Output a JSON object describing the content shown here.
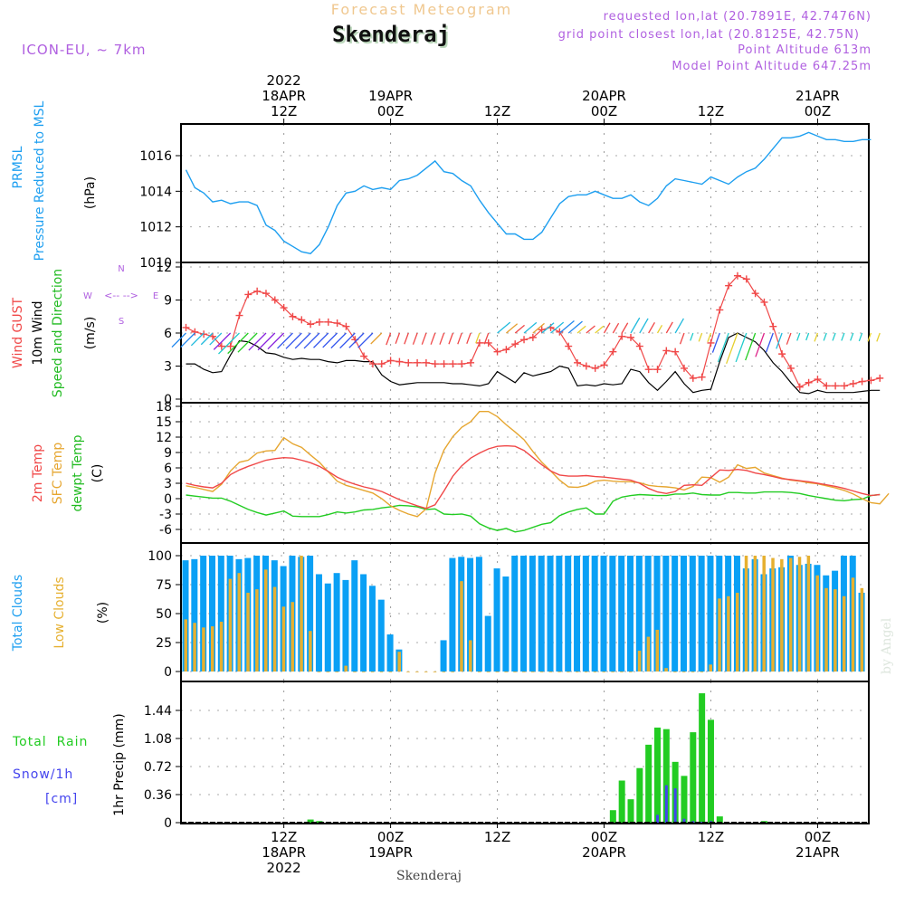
{
  "header": {
    "title": "Forecast Meteogram",
    "location": "Skenderaj",
    "model": "ICON-EU, ~ 7km",
    "requested": "requested lon,lat (20.7891E, 42.7476N)",
    "gridpoint": "grid point closest lon,lat (20.8125E, 42.75N)",
    "point_altitude": "Point Altitude 613m",
    "model_altitude": "Model Point Altitude 647.25m",
    "footer_location": "Skenderaj",
    "credit": "by Angel"
  },
  "colors": {
    "pressure": "#1e9ff0",
    "gust": "#f04848",
    "wind": "#000000",
    "temp2m": "#f04848",
    "sfc": "#e6a630",
    "dewpt": "#22cc22",
    "total_clouds": "#0aa0f5",
    "low_clouds": "#e6b030",
    "rain": "#22cc22",
    "snow": "#4444ee",
    "label_purple": "#b060e0"
  },
  "time_axis": {
    "top_labels": [
      {
        "h": 11,
        "lines": [
          "2022",
          "18APR",
          "12Z"
        ]
      },
      {
        "h": 23,
        "lines": [
          "19APR",
          "00Z"
        ]
      },
      {
        "h": 35,
        "lines": [
          "12Z"
        ]
      },
      {
        "h": 47,
        "lines": [
          "20APR",
          "00Z"
        ]
      },
      {
        "h": 59,
        "lines": [
          "12Z"
        ]
      },
      {
        "h": 71,
        "lines": [
          "21APR",
          "00Z"
        ]
      }
    ],
    "bottom_labels": [
      {
        "h": 11,
        "lines": [
          "12Z",
          "18APR",
          "2022"
        ]
      },
      {
        "h": 23,
        "lines": [
          "00Z",
          "19APR"
        ]
      },
      {
        "h": 35,
        "lines": [
          "12Z"
        ]
      },
      {
        "h": 47,
        "lines": [
          "00Z",
          "20APR"
        ]
      },
      {
        "h": 59,
        "lines": [
          "12Z"
        ]
      },
      {
        "h": 71,
        "lines": [
          "00Z",
          "21APR"
        ]
      }
    ]
  },
  "chart_data": [
    {
      "type": "line",
      "title": "PRMSL Pressure Reduced to MSL",
      "ylabel": "(hPa)",
      "ylim": [
        1010,
        1018
      ],
      "yticks": [
        1010,
        1012,
        1014,
        1016
      ],
      "ytick_labels": [
        "1010",
        "1012",
        "1014",
        "1016"
      ],
      "x_start_hour": 0,
      "x_end_hour": 77,
      "series": [
        {
          "name": "PRMSL",
          "values": [
            1015.2,
            1014.2,
            1013.9,
            1013.4,
            1013.5,
            1013.3,
            1013.4,
            1013.4,
            1013.2,
            1012.1,
            1011.8,
            1011.2,
            1010.9,
            1010.6,
            1010.5,
            1011.0,
            1012.0,
            1013.2,
            1013.9,
            1014.0,
            1014.3,
            1014.1,
            1014.2,
            1014.1,
            1014.6,
            1014.7,
            1014.9,
            1015.3,
            1015.7,
            1015.1,
            1015.0,
            1014.6,
            1014.3,
            1013.5,
            1012.8,
            1012.2,
            1011.6,
            1011.6,
            1011.3,
            1011.3,
            1011.7,
            1012.5,
            1013.3,
            1013.7,
            1013.8,
            1013.8,
            1014.0,
            1013.8,
            1013.6,
            1013.6,
            1013.8,
            1013.4,
            1013.2,
            1013.6,
            1014.3,
            1014.7,
            1014.6,
            1014.5,
            1014.4,
            1014.8,
            1014.6,
            1014.4,
            1014.8,
            1015.1,
            1015.3,
            1015.8,
            1016.4,
            1017.0,
            1017.0,
            1017.1,
            1017.3,
            1017.1,
            1016.9,
            1016.9,
            1016.8,
            1016.8,
            1016.9,
            1016.9
          ]
        }
      ]
    },
    {
      "type": "line",
      "title": "Wind GUST / 10m Wind Speed and Direction",
      "ylabel": "(m/s)",
      "ylim": [
        0,
        12
      ],
      "yticks": [
        0,
        3,
        6,
        9,
        12
      ],
      "ytick_labels": [
        "0",
        "3",
        "6",
        "9",
        "12"
      ],
      "compass": {
        "n": "N",
        "s": "S",
        "w": "W",
        "e": "E"
      },
      "series": [
        {
          "name": "Wind GUST",
          "values": [
            6.5,
            6.1,
            5.9,
            5.7,
            4.8,
            4.8,
            7.6,
            9.5,
            9.8,
            9.6,
            9.0,
            8.3,
            7.5,
            7.2,
            6.8,
            7.0,
            7.0,
            6.9,
            6.6,
            5.4,
            3.9,
            3.2,
            3.2,
            3.5,
            3.4,
            3.3,
            3.3,
            3.3,
            3.2,
            3.2,
            3.2,
            3.2,
            3.3,
            5.1,
            5.1,
            4.3,
            4.5,
            5.0,
            5.4,
            5.6,
            6.3,
            6.5,
            6.1,
            4.8,
            3.3,
            3.0,
            2.8,
            3.1,
            4.3,
            5.7,
            5.6,
            4.8,
            2.7,
            2.7,
            4.4,
            4.3,
            2.8,
            1.9,
            2.0,
            5.1,
            8.1,
            10.3,
            11.2,
            10.9,
            9.6,
            8.8,
            6.6,
            4.1,
            2.8,
            1.1,
            1.5,
            1.8,
            1.2,
            1.2,
            1.2,
            1.4,
            1.6,
            1.7,
            1.9
          ]
        },
        {
          "name": "10m Wind",
          "values": [
            3.2,
            3.2,
            2.7,
            2.4,
            2.5,
            4.0,
            5.3,
            5.2,
            4.8,
            4.2,
            4.1,
            3.8,
            3.6,
            3.7,
            3.6,
            3.6,
            3.4,
            3.3,
            3.5,
            3.5,
            3.4,
            3.4,
            2.2,
            1.6,
            1.3,
            1.4,
            1.5,
            1.5,
            1.5,
            1.5,
            1.4,
            1.4,
            1.3,
            1.2,
            1.4,
            2.5,
            2.0,
            1.5,
            2.4,
            2.1,
            2.3,
            2.5,
            3.0,
            2.8,
            1.2,
            1.3,
            1.2,
            1.4,
            1.3,
            1.4,
            2.7,
            2.5,
            1.5,
            0.8,
            1.6,
            2.5,
            1.4,
            0.6,
            0.8,
            0.9,
            3.4,
            5.6,
            6.0,
            5.6,
            5.2,
            4.4,
            3.3,
            2.5,
            1.5,
            0.6,
            0.5,
            0.8,
            0.6,
            0.6,
            0.6,
            0.6,
            0.7,
            0.8,
            0.8
          ]
        },
        {
          "name": "Wind Direction Arrows",
          "note": "colored arrows at ~6 m/s level; SW/S flow 18APR, NE/N weak 19APR, W-E varying 20APR, E/NE 21APR"
        }
      ]
    },
    {
      "type": "line",
      "title": "2m Temp / SFC Temp / dewpt Temp",
      "ylabel": "(C)",
      "ylim": [
        -9,
        18
      ],
      "yticks": [
        -6,
        -3,
        0,
        3,
        6,
        9,
        12,
        15,
        18
      ],
      "ytick_labels": [
        "-6",
        "-3",
        "0",
        "3",
        "6",
        "9",
        "12",
        "15",
        "18"
      ],
      "series": [
        {
          "name": "2m Temp",
          "values": [
            3.0,
            2.6,
            2.3,
            2.1,
            3.0,
            4.7,
            5.6,
            6.3,
            6.9,
            7.5,
            7.8,
            8.0,
            7.9,
            7.5,
            7.0,
            6.3,
            5.3,
            4.2,
            3.4,
            2.8,
            2.3,
            1.9,
            1.4,
            0.6,
            -0.2,
            -0.8,
            -1.4,
            -1.9,
            -1.2,
            1.5,
            4.4,
            6.4,
            7.9,
            8.9,
            9.7,
            10.2,
            10.3,
            10.2,
            9.4,
            8.0,
            6.6,
            5.4,
            4.6,
            4.4,
            4.4,
            4.5,
            4.3,
            4.2,
            4.0,
            3.8,
            3.6,
            3.0,
            2.0,
            1.3,
            1.0,
            1.4,
            2.6,
            2.7,
            2.6,
            4.1,
            5.6,
            5.5,
            5.7,
            5.5,
            5.0,
            4.7,
            4.3,
            3.9,
            3.7,
            3.5,
            3.3,
            3.0,
            2.7,
            2.4,
            2.0,
            1.5,
            1.0,
            0.6,
            0.8
          ]
        },
        {
          "name": "SFC Temp",
          "values": [
            2.5,
            2.2,
            1.8,
            1.4,
            2.8,
            5.4,
            7.1,
            7.5,
            8.9,
            9.3,
            9.4,
            11.9,
            10.7,
            10.0,
            8.5,
            7.1,
            5.2,
            3.4,
            2.6,
            2.1,
            1.6,
            1.1,
            0.0,
            -1.4,
            -2.3,
            -3.0,
            -3.5,
            -2.0,
            5.0,
            9.5,
            12.1,
            13.9,
            15.0,
            17.0,
            17.0,
            16.0,
            14.4,
            13.0,
            11.5,
            9.2,
            7.1,
            5.4,
            3.6,
            2.3,
            2.2,
            2.6,
            3.4,
            3.6,
            3.4,
            3.3,
            3.3,
            3.1,
            2.6,
            2.4,
            2.3,
            2.1,
            1.7,
            2.4,
            4.2,
            4.1,
            3.2,
            4.2,
            6.6,
            5.9,
            6.1,
            5.0,
            4.5,
            4.0,
            3.6,
            3.4,
            3.1,
            2.9,
            2.5,
            2.1,
            1.6,
            0.9,
            0.0,
            -0.8,
            -1.0,
            1.0
          ]
        },
        {
          "name": "dewpt Temp",
          "values": [
            0.7,
            0.5,
            0.3,
            0.1,
            0.1,
            -0.5,
            -1.3,
            -2.1,
            -2.7,
            -3.2,
            -2.8,
            -2.4,
            -3.4,
            -3.5,
            -3.5,
            -3.5,
            -3.1,
            -2.6,
            -2.8,
            -2.6,
            -2.2,
            -2.1,
            -1.8,
            -1.6,
            -1.3,
            -1.4,
            -1.6,
            -2.1,
            -2.0,
            -3.0,
            -3.1,
            -3.0,
            -3.4,
            -4.9,
            -5.7,
            -6.2,
            -5.8,
            -6.5,
            -6.2,
            -5.6,
            -5.0,
            -4.7,
            -3.3,
            -2.6,
            -2.1,
            -1.8,
            -3.0,
            -3.0,
            -0.5,
            0.3,
            0.6,
            0.8,
            0.7,
            0.6,
            0.6,
            0.9,
            0.9,
            1.1,
            0.8,
            0.7,
            0.7,
            1.2,
            1.2,
            1.1,
            1.1,
            1.3,
            1.3,
            1.3,
            1.2,
            1.0,
            0.6,
            0.3,
            0.0,
            -0.3,
            -0.4,
            -0.2,
            -0.1,
            0.6,
            0.8
          ]
        }
      ]
    },
    {
      "type": "bar",
      "title": "Total Clouds / Low Clouds",
      "ylabel": "(%)",
      "ylim": [
        0,
        110
      ],
      "yticks": [
        0,
        25,
        50,
        75,
        100
      ],
      "ytick_labels": [
        "0",
        "25",
        "50",
        "75",
        "100"
      ],
      "series": [
        {
          "name": "Total Clouds",
          "values": [
            96,
            97,
            100,
            100,
            100,
            100,
            97,
            98,
            100,
            100,
            96,
            91,
            100,
            99,
            100,
            84,
            76,
            85,
            79,
            96,
            84,
            74,
            62,
            32,
            19,
            0,
            0,
            0,
            0,
            27,
            98,
            99,
            98,
            99,
            48,
            89,
            82,
            100,
            100,
            100,
            100,
            100,
            100,
            100,
            100,
            100,
            100,
            100,
            100,
            100,
            100,
            100,
            100,
            100,
            100,
            100,
            100,
            100,
            100,
            100,
            100,
            100,
            100,
            89,
            97,
            84,
            89,
            90,
            100,
            92,
            93,
            92,
            83,
            87,
            100,
            100,
            68,
            72,
            66
          ]
        },
        {
          "name": "Low Clouds",
          "values": [
            45,
            42,
            38,
            39,
            43,
            80,
            85,
            68,
            71,
            88,
            73,
            56,
            60,
            100,
            35,
            0,
            0,
            0,
            5,
            0,
            0,
            0,
            0,
            0,
            17,
            0,
            0,
            0,
            0,
            0,
            0,
            78,
            27,
            0,
            0,
            0,
            0,
            0,
            0,
            0,
            0,
            0,
            0,
            0,
            0,
            0,
            0,
            0,
            0,
            0,
            0,
            4,
            2,
            1,
            1,
            0,
            0,
            0,
            0,
            0,
            0,
            0,
            0,
            0,
            0,
            0,
            0,
            0,
            0,
            0,
            0,
            0,
            0,
            0,
            0,
            0,
            0,
            0
          ]
        },
        {
          "name": "Low Clouds (cont.)",
          "note": "Low clouds from 20APR 00Z: [0,0,0,0,18,30,36,3,0,0,0,0,6,63,65,68,100,100,100,98,97,98,99,100,83,72,71,65,81,72,75,72,64,71,72,64,53,47,41,45,36,61,44,62,62]"
        }
      ]
    },
    {
      "type": "bar",
      "title": "1hr Precip",
      "ylabel": "1hr Precip (mm)",
      "ylim": [
        0,
        1.8
      ],
      "yticks": [
        0,
        0.36,
        0.72,
        1.08,
        1.44
      ],
      "ytick_labels": [
        "0",
        "0.36",
        "0.72",
        "1.08",
        "1.44"
      ],
      "legend": [
        "Total Rain",
        "Snow/1h [cm]"
      ],
      "series": [
        {
          "name": "Total Rain",
          "values": [
            0,
            0,
            0,
            0,
            0,
            0,
            0,
            0,
            0,
            0,
            0,
            0,
            0,
            0,
            0.04,
            0.02,
            0,
            0,
            0,
            0,
            0,
            0,
            0,
            0,
            0,
            0,
            0,
            0,
            0,
            0,
            0,
            0,
            0,
            0,
            0,
            0,
            0,
            0,
            0,
            0,
            0,
            0,
            0,
            0,
            0,
            0,
            0,
            0,
            0.16,
            0.54,
            0.3,
            0.7,
            1.0,
            1.22,
            1.2,
            0.78,
            0.6,
            1.16,
            1.66,
            1.32,
            0.08,
            0,
            0,
            0,
            0,
            0.02,
            0,
            0,
            0,
            0,
            0,
            0,
            0,
            0,
            0,
            0,
            0,
            0
          ]
        },
        {
          "name": "Snow/1h",
          "values": [
            0,
            0,
            0,
            0,
            0,
            0,
            0,
            0,
            0,
            0,
            0,
            0,
            0,
            0,
            0,
            0,
            0,
            0,
            0,
            0,
            0,
            0,
            0,
            0,
            0,
            0,
            0,
            0,
            0,
            0,
            0,
            0,
            0,
            0,
            0,
            0,
            0,
            0,
            0,
            0,
            0,
            0,
            0,
            0,
            0,
            0,
            0,
            0,
            0,
            0,
            0,
            0,
            0,
            0.1,
            0.48,
            0.44,
            0.05,
            0.02,
            0.01,
            0.02,
            0,
            0,
            0,
            0,
            0,
            0,
            0,
            0,
            0,
            0,
            0,
            0,
            0,
            0,
            0,
            0,
            0,
            0
          ]
        }
      ]
    }
  ]
}
